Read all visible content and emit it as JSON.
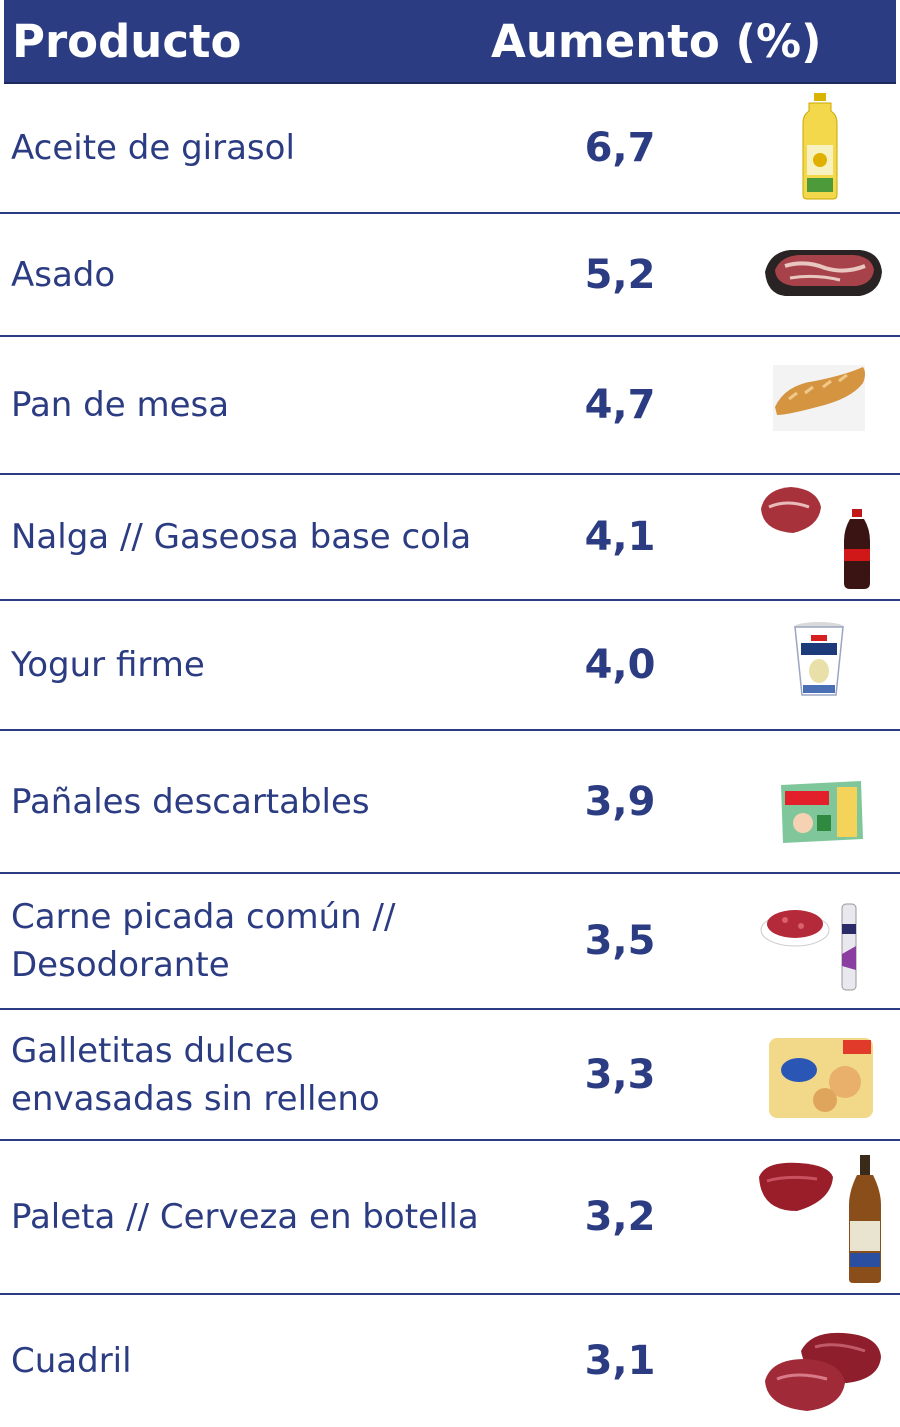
{
  "header": {
    "product": "Producto",
    "increase": "Aumento (%)"
  },
  "rows": [
    {
      "name": "Aceite de girasol",
      "value": "6,7",
      "image": "sunflower-oil-bottle"
    },
    {
      "name": "Asado",
      "value": "5,2",
      "image": "asado-meat-tray"
    },
    {
      "name": "Pan de mesa",
      "value": "4,7",
      "image": "bread-loaf"
    },
    {
      "name": "Nalga // Gaseosa base cola",
      "value": "4,1",
      "image": "beef-and-cola-bottle"
    },
    {
      "name": "Yogur firme",
      "value": "4,0",
      "image": "yogurt-cup"
    },
    {
      "name": "Pañales descartables",
      "value": "3,9",
      "image": "diaper-package"
    },
    {
      "name": "Carne picada común // Desodorante",
      "value": "3,5",
      "image": "minced-meat-and-deodorant"
    },
    {
      "name": "Galletitas dulces envasadas sin relleno",
      "value": "3,3",
      "image": "cookie-package"
    },
    {
      "name": "Paleta // Cerveza en botella",
      "value": "3,2",
      "image": "beef-and-beer-bottle"
    },
    {
      "name": "Cuadril",
      "value": "3,1",
      "image": "cuadril-meat"
    }
  ],
  "colors": {
    "header_bg": "#2b3c82",
    "text": "#2b3c82",
    "divider": "#2b3c82"
  }
}
